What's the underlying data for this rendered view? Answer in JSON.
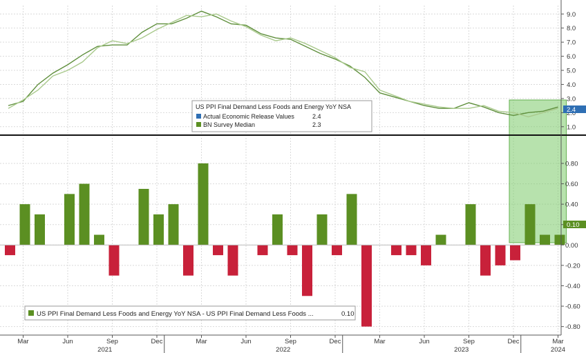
{
  "theme": {
    "background": "#ffffff",
    "grid": "#d9d9d9",
    "line_actual": "#5f8f3c",
    "line_survey": "#a9c98c",
    "bar_positive": "#5b8f22",
    "bar_negative": "#c8213a",
    "highlight": "#7ccb6a",
    "tag_actual": "#2f6fb4",
    "tag_diff": "#5b8f22"
  },
  "chart_data": [
    {
      "type": "line",
      "title": "US PPI Final Demand Less Foods and Energy YoY NSA",
      "ylim": [
        0.5,
        9.6
      ],
      "yticks": [
        "1.0",
        "2.0",
        "3.0",
        "4.0",
        "5.0",
        "6.0",
        "7.0",
        "8.0",
        "9.0"
      ],
      "x": [
        "2021-02",
        "2021-03",
        "2021-04",
        "2021-05",
        "2021-06",
        "2021-07",
        "2021-08",
        "2021-09",
        "2021-10",
        "2021-11",
        "2021-12",
        "2022-01",
        "2022-02",
        "2022-03",
        "2022-04",
        "2022-05",
        "2022-06",
        "2022-07",
        "2022-08",
        "2022-09",
        "2022-10",
        "2022-11",
        "2022-12",
        "2023-01",
        "2023-02",
        "2023-03",
        "2023-04",
        "2023-05",
        "2023-06",
        "2023-07",
        "2023-08",
        "2023-09",
        "2023-10",
        "2023-11",
        "2023-12",
        "2024-01",
        "2024-02",
        "2024-03"
      ],
      "series": [
        {
          "name": "Actual Economic Release Values",
          "last_value": "2.4",
          "values": [
            2.5,
            2.8,
            4.0,
            4.8,
            5.4,
            6.1,
            6.7,
            6.8,
            6.8,
            7.7,
            8.3,
            8.3,
            8.7,
            9.2,
            8.8,
            8.3,
            8.2,
            7.6,
            7.3,
            7.2,
            6.7,
            6.2,
            5.8,
            5.3,
            4.5,
            3.4,
            3.1,
            2.8,
            2.5,
            2.3,
            2.3,
            2.7,
            2.4,
            2.0,
            1.8,
            2.0,
            2.1,
            2.4
          ]
        },
        {
          "name": "BN Survey Median",
          "last_value": "2.3",
          "values": [
            2.3,
            2.9,
            3.6,
            4.6,
            5.0,
            5.6,
            6.6,
            7.1,
            6.9,
            7.3,
            7.9,
            8.4,
            8.9,
            8.8,
            9.0,
            8.5,
            8.1,
            7.5,
            7.1,
            7.3,
            6.9,
            6.4,
            5.9,
            5.2,
            4.9,
            3.6,
            3.2,
            2.8,
            2.6,
            2.4,
            2.3,
            2.3,
            2.5,
            2.1,
            2.0,
            1.7,
            2.0,
            2.3
          ]
        }
      ],
      "legend": "center",
      "last_value_tag": "2.4"
    },
    {
      "type": "bar",
      "ylim": [
        -0.87,
        1.05
      ],
      "yticks": [
        "0.80",
        "0.60",
        "0.40",
        "0.20",
        "0.00",
        "-0.20",
        "-0.40",
        "-0.60",
        "-0.80"
      ],
      "series": [
        {
          "name": "US PPI Final Demand Less Foods and Energy YoY NSA - US PPI Final Demand Less Foods ...",
          "last_value": "0.10",
          "values": [
            -0.1,
            0.4,
            0.3,
            0.0,
            0.5,
            0.6,
            0.1,
            -0.3,
            0.0,
            0.55,
            0.3,
            0.4,
            -0.3,
            0.8,
            -0.1,
            -0.3,
            0.0,
            -0.1,
            0.3,
            -0.1,
            -0.5,
            0.3,
            -0.1,
            0.5,
            -0.8,
            0.0,
            -0.1,
            -0.1,
            -0.2,
            0.1,
            0.0,
            0.4,
            -0.3,
            -0.2,
            -0.15,
            0.4,
            0.1,
            0.1
          ]
        }
      ],
      "legend": "bottom-left",
      "last_value_tag": "0.10"
    }
  ],
  "x_axis": {
    "month_labels": [
      "Mar",
      "Jun",
      "Sep",
      "Dec",
      "Mar",
      "Jun",
      "Sep",
      "Dec",
      "Mar",
      "Jun",
      "Sep",
      "Dec",
      "Mar"
    ],
    "year_labels": [
      "2021",
      "2022",
      "2023",
      "2024"
    ]
  }
}
